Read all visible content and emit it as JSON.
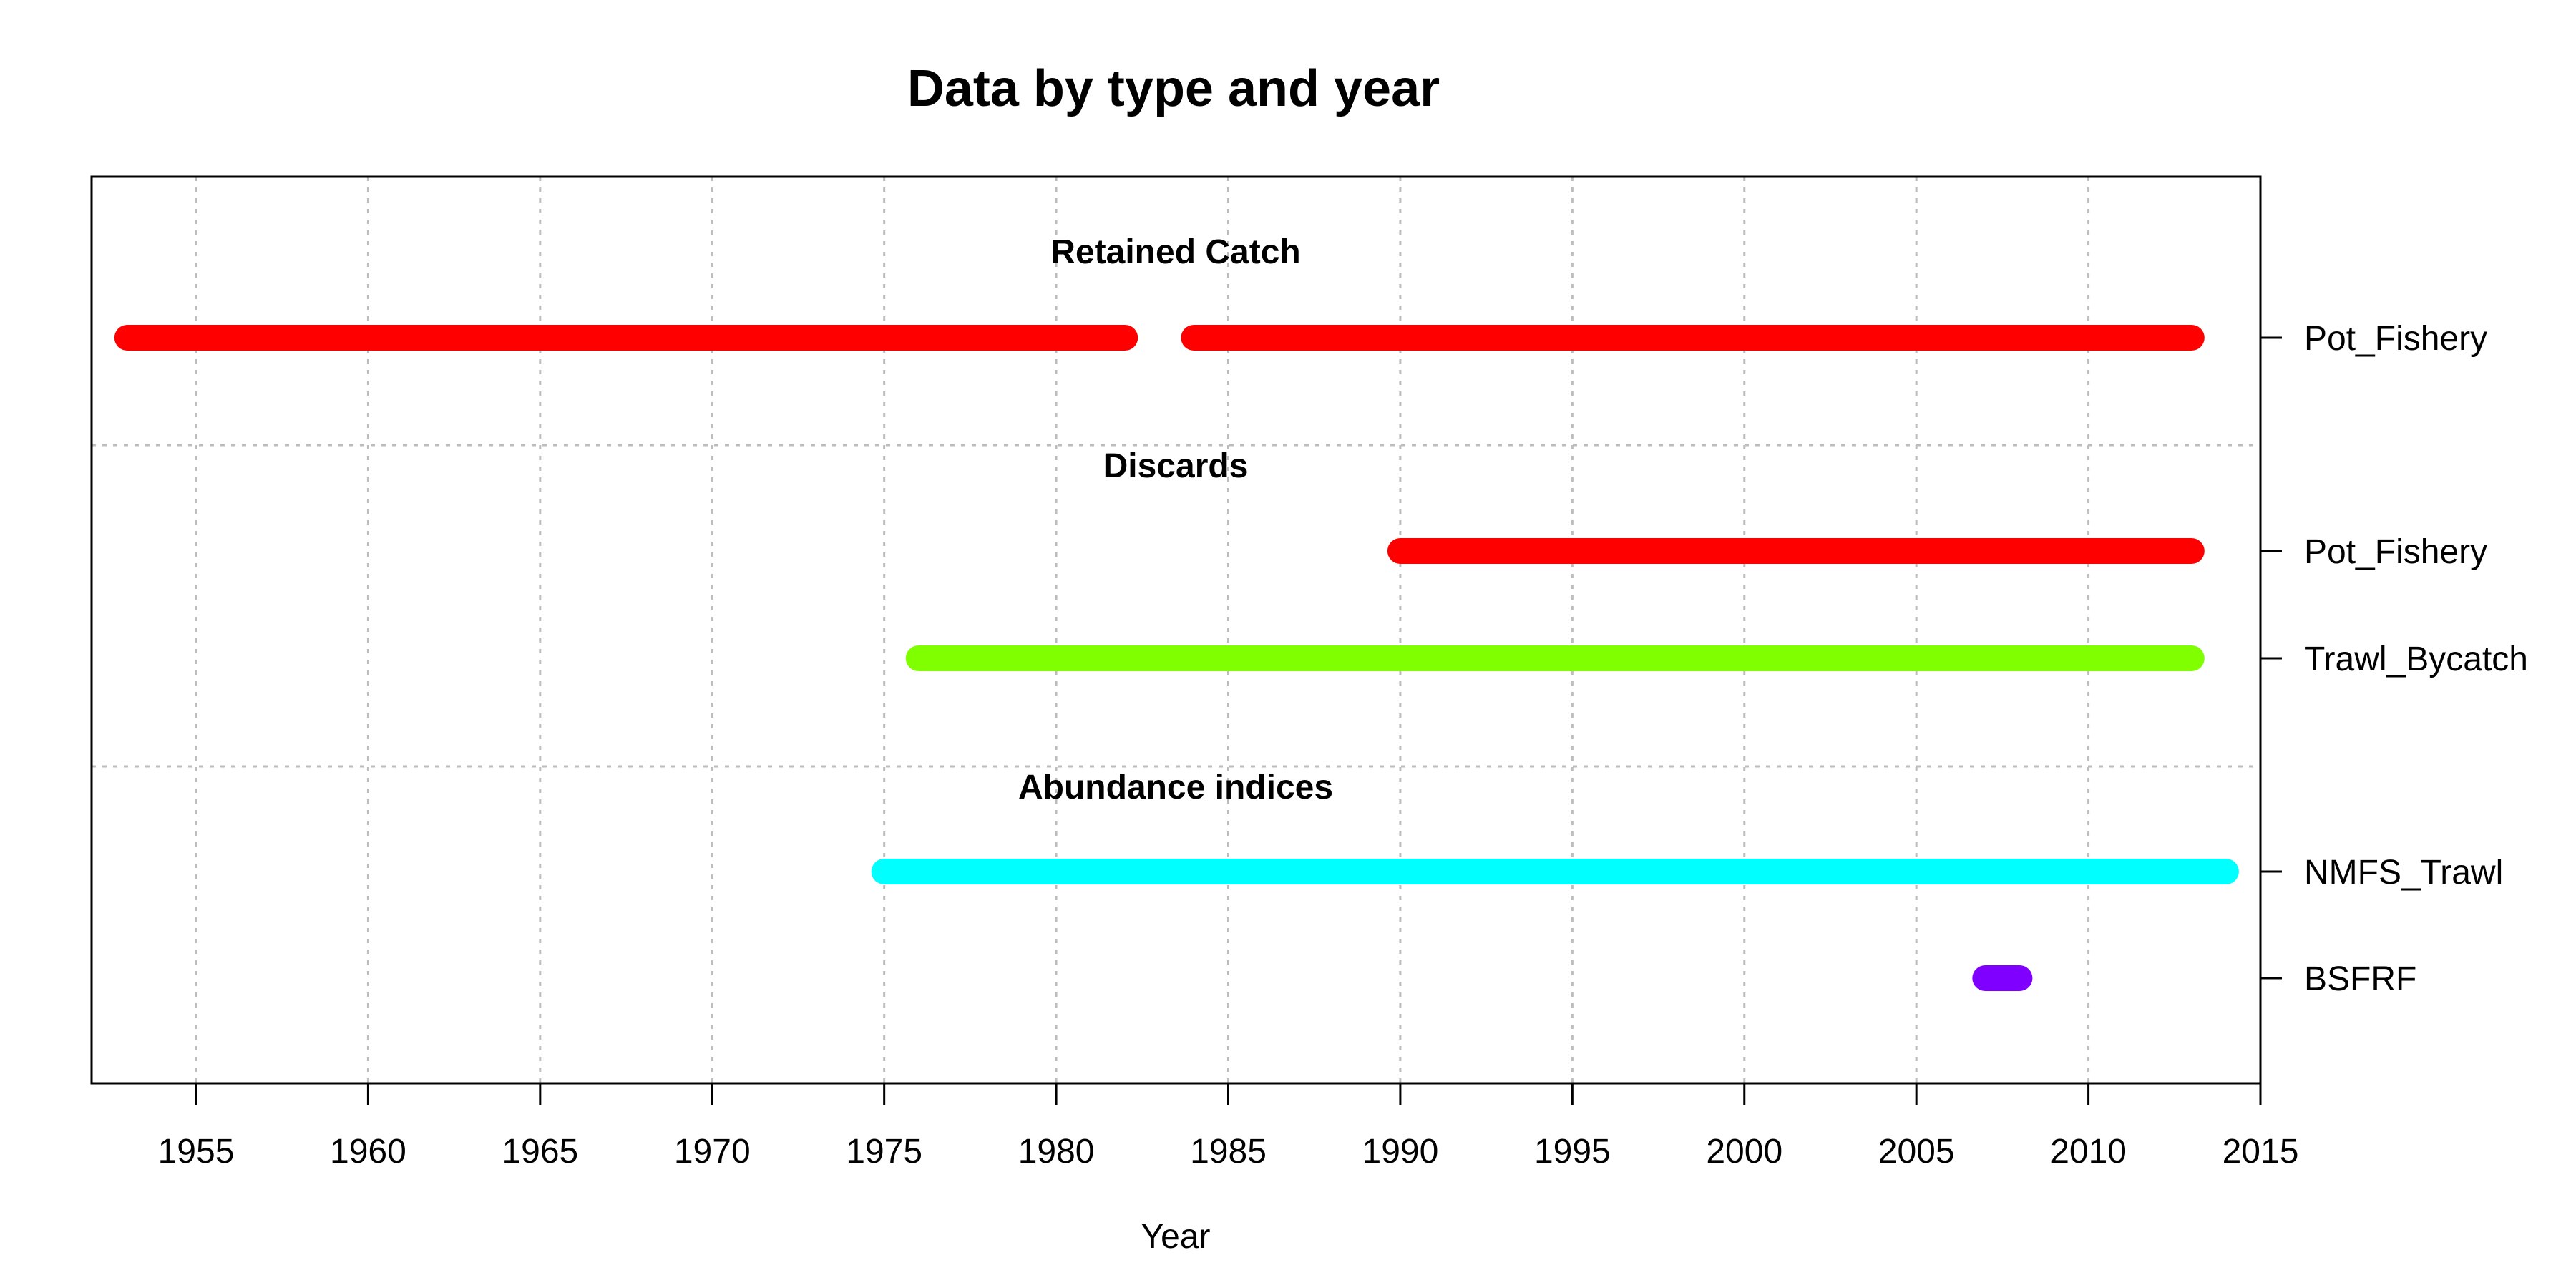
{
  "chart_data": {
    "type": "timeline",
    "title": "Data by type and year",
    "xlabel": "Year",
    "ylabel": "",
    "xlim": [
      1952,
      2015
    ],
    "xticks": [
      1955,
      1960,
      1965,
      1970,
      1975,
      1980,
      1985,
      1990,
      1995,
      2000,
      2005,
      2010,
      2015
    ],
    "grid": true,
    "colors": {
      "retained": "#ff0000",
      "pot_fishery": "#ff0000",
      "trawl_bycatch": "#80ff00",
      "nmfs_trawl": "#00ffff",
      "bsfrf": "#8000ff"
    },
    "groups": [
      {
        "title": "Retained Catch",
        "rows": [
          {
            "label": "Pot_Fishery",
            "color": "#ff0000",
            "segments": [
              [
                1953,
                1982
              ],
              [
                1984,
                2013
              ]
            ]
          }
        ]
      },
      {
        "title": "Discards",
        "rows": [
          {
            "label": "Pot_Fishery",
            "color": "#ff0000",
            "segments": [
              [
                1990,
                2013
              ]
            ]
          },
          {
            "label": "Trawl_Bycatch",
            "color": "#80ff00",
            "segments": [
              [
                1976,
                2013
              ]
            ]
          }
        ]
      },
      {
        "title": "Abundance indices",
        "rows": [
          {
            "label": "NMFS_Trawl",
            "color": "#00ffff",
            "segments": [
              [
                1975,
                2014
              ]
            ]
          },
          {
            "label": "BSFRF",
            "color": "#8000ff",
            "segments": [
              [
                2007,
                2008
              ]
            ]
          }
        ]
      }
    ]
  }
}
